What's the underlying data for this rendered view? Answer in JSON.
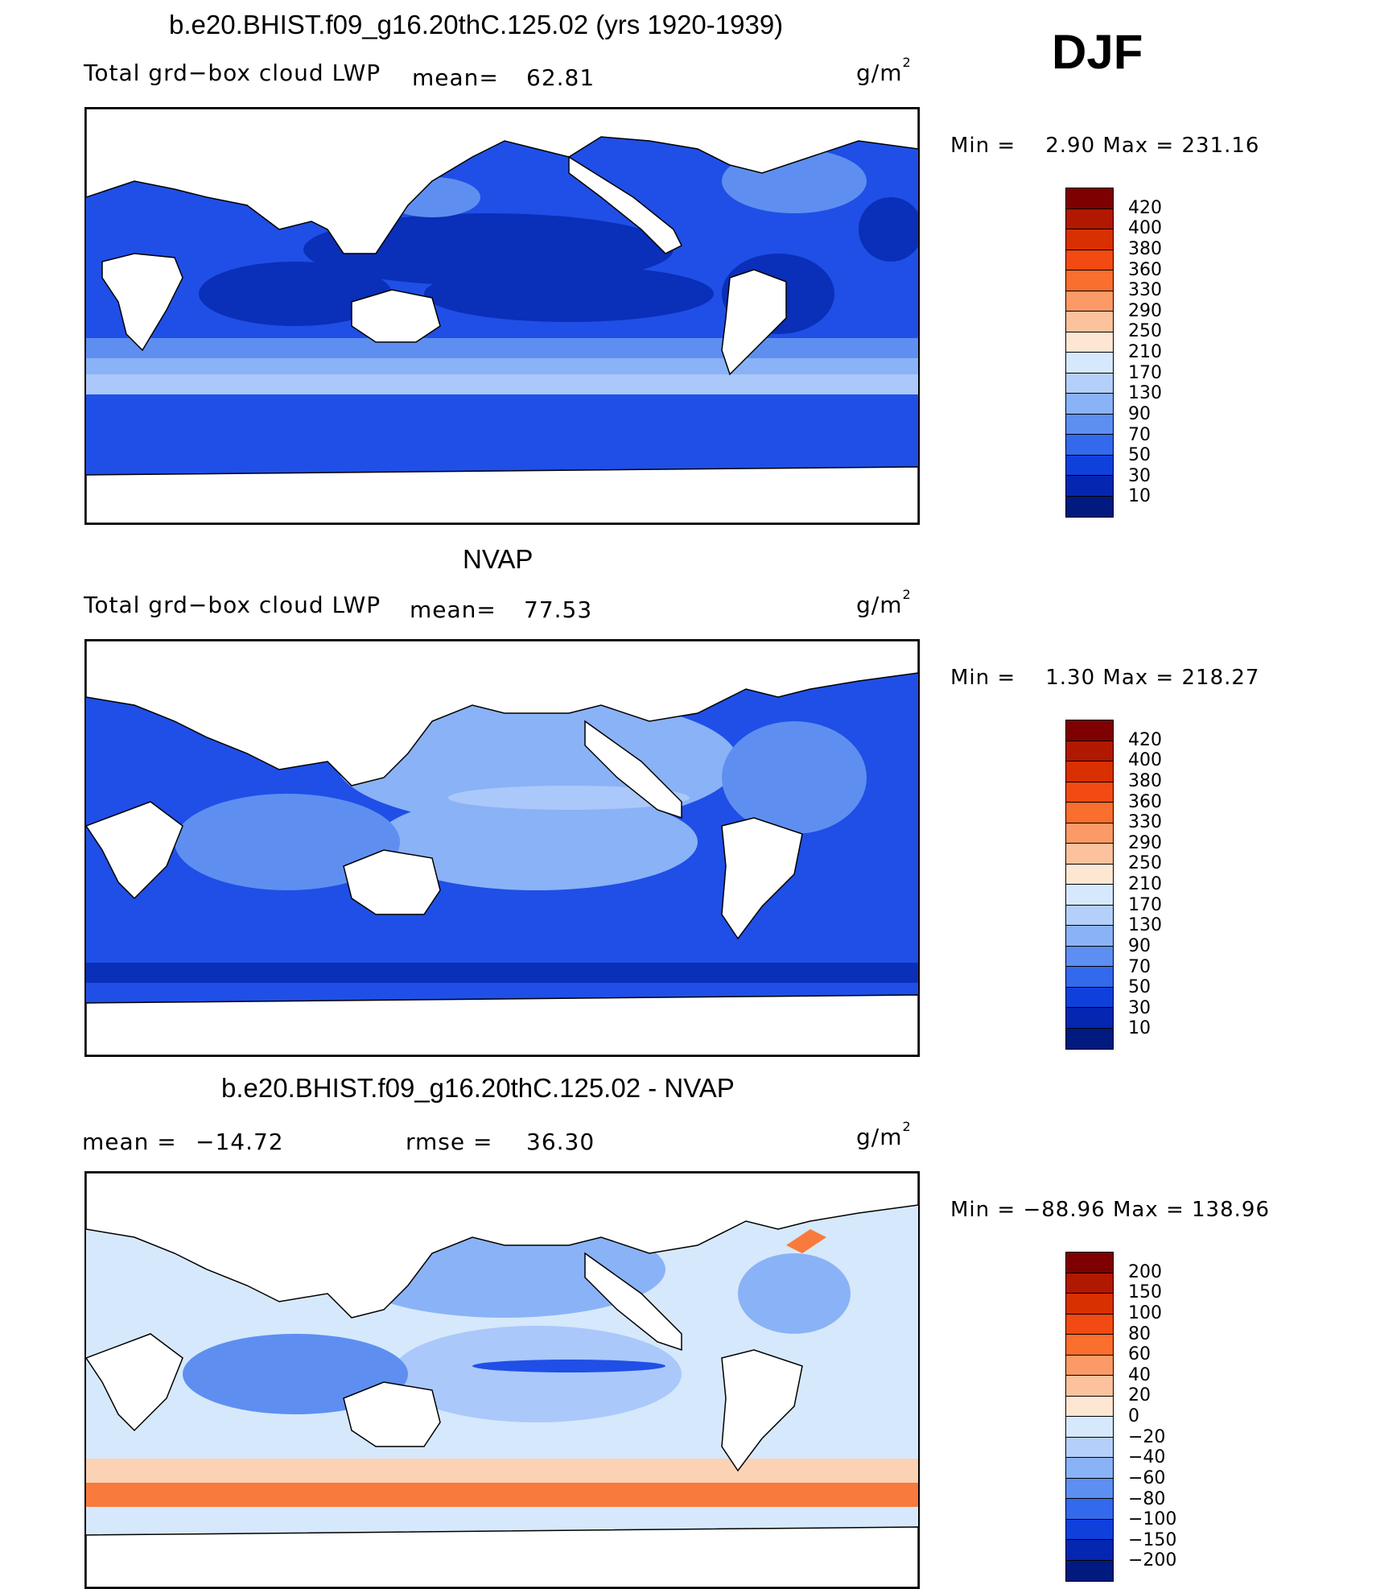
{
  "header": {
    "season": "DJF"
  },
  "panels": [
    {
      "title": "b.e20.BHIST.f09_g16.20thC.125.02 (yrs 1920-1939)",
      "variable": "Total grd−box cloud LWP",
      "stat1_label": "mean=",
      "stat1_value": "62.81",
      "units": "g/m",
      "units_exp": "2",
      "min_label": "Min =",
      "min_value": "2.90",
      "max_label": "Max =",
      "max_value": "231.16",
      "colorbar_levels": [
        "420",
        "400",
        "380",
        "360",
        "330",
        "290",
        "250",
        "210",
        "170",
        "130",
        "90",
        "70",
        "50",
        "30",
        "10"
      ],
      "colorbar_colors": [
        "#7f0000",
        "#b01800",
        "#d83000",
        "#f24a12",
        "#fa6e2e",
        "#fb9a66",
        "#fcc29e",
        "#fde6d2",
        "#d6e8fb",
        "#b4d0fa",
        "#8ab2f6",
        "#5d8ef1",
        "#3369ec",
        "#1040dc",
        "#0526b0",
        "#001a80"
      ]
    },
    {
      "title": "NVAP",
      "variable": "Total grd−box cloud LWP",
      "stat1_label": "mean=",
      "stat1_value": "77.53",
      "units": "g/m",
      "units_exp": "2",
      "min_label": "Min =",
      "min_value": "1.30",
      "max_label": "Max =",
      "max_value": "218.27",
      "colorbar_levels": [
        "420",
        "400",
        "380",
        "360",
        "330",
        "290",
        "250",
        "210",
        "170",
        "130",
        "90",
        "70",
        "50",
        "30",
        "10"
      ],
      "colorbar_colors": [
        "#7f0000",
        "#b01800",
        "#d83000",
        "#f24a12",
        "#fa6e2e",
        "#fb9a66",
        "#fcc29e",
        "#fde6d2",
        "#d6e8fb",
        "#b4d0fa",
        "#8ab2f6",
        "#5d8ef1",
        "#3369ec",
        "#1040dc",
        "#0526b0",
        "#001a80"
      ]
    },
    {
      "title": "b.e20.BHIST.f09_g16.20thC.125.02 - NVAP",
      "stat1_label": "mean =",
      "stat1_value": "−14.72",
      "stat2_label": "rmse =",
      "stat2_value": "36.30",
      "units": "g/m",
      "units_exp": "2",
      "min_label": "Min =",
      "min_value": "−88.96",
      "max_label": "Max =",
      "max_value": "138.96",
      "colorbar_levels": [
        "200",
        "150",
        "100",
        "80",
        "60",
        "40",
        "20",
        "0",
        "−20",
        "−40",
        "−60",
        "−80",
        "−100",
        "−150",
        "−200"
      ],
      "colorbar_colors": [
        "#7f0000",
        "#b01800",
        "#d83000",
        "#f24a12",
        "#fa6e2e",
        "#fb9a66",
        "#fcc29e",
        "#fde6d2",
        "#d6e8fb",
        "#b4d0fa",
        "#8ab2f6",
        "#5d8ef1",
        "#3369ec",
        "#1040dc",
        "#0526b0",
        "#001a80"
      ]
    }
  ],
  "colors": {
    "deep_blue": "#0a2fb8",
    "mid_blue": "#1f4fe6",
    "light_blue": "#5e8ff0",
    "pale_blue": "#aac8fa",
    "pale_orange": "#fcd2b4",
    "orange": "#f87a3c",
    "land": "#ffffff"
  }
}
